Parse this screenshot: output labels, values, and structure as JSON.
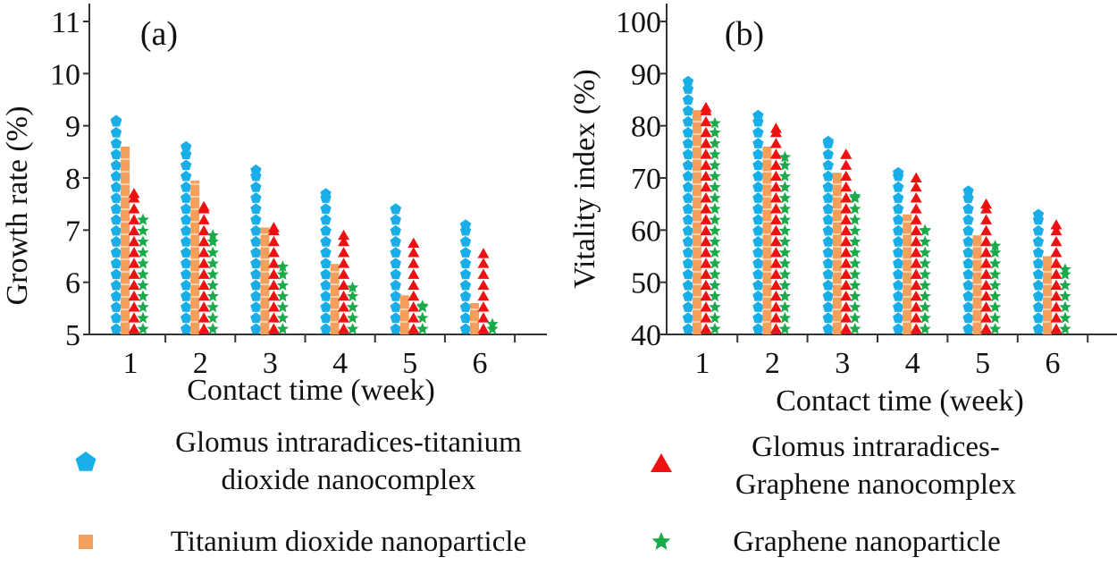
{
  "colors": {
    "gi_tio2": "#1aaee8",
    "tio2": "#f4a05c",
    "gi_graphene": "#ee1111",
    "graphene": "#1aaa4a",
    "axis": "#333333"
  },
  "legend": [
    {
      "key": "gi_tio2",
      "marker": "pentagon",
      "lines": [
        "Glomus intraradices-titanium",
        "dioxide nanocomplex"
      ]
    },
    {
      "key": "tio2",
      "marker": "square",
      "lines": [
        "Titanium dioxide nanoparticle"
      ]
    },
    {
      "key": "gi_graphene",
      "marker": "triangle",
      "lines": [
        "Glomus intraradices-",
        "Graphene nanocomplex"
      ]
    },
    {
      "key": "graphene",
      "marker": "star",
      "lines": [
        "Graphene nanoparticle"
      ]
    }
  ],
  "chart_data": [
    {
      "type": "bar",
      "panel": "(a)",
      "title": "",
      "xlabel": "Contact time (week)",
      "ylabel": "Growth rate (%)",
      "categories": [
        "1",
        "2",
        "3",
        "4",
        "5",
        "6"
      ],
      "ylim": [
        5,
        11
      ],
      "yticks": [
        5,
        6,
        7,
        8,
        9,
        10,
        11
      ],
      "grid": false,
      "series": [
        {
          "name": "Glomus intraradices-titanium dioxide nanocomplex",
          "key": "gi_tio2",
          "values": [
            9.2,
            8.7,
            8.25,
            7.8,
            7.5,
            7.2
          ]
        },
        {
          "name": "Titanium dioxide nanoparticle",
          "key": "tio2",
          "values": [
            8.6,
            7.95,
            7.05,
            6.35,
            5.75,
            5.6
          ]
        },
        {
          "name": "Glomus intraradices-Graphene nanocomplex",
          "key": "gi_graphene",
          "values": [
            7.8,
            7.55,
            7.15,
            7.0,
            6.85,
            6.65
          ]
        },
        {
          "name": "Graphene nanoparticle",
          "key": "graphene",
          "values": [
            7.3,
            7.0,
            6.4,
            6.0,
            5.65,
            5.3
          ]
        }
      ]
    },
    {
      "type": "bar",
      "panel": "(b)",
      "title": "",
      "xlabel": "Contact time (week)",
      "ylabel": "Vitality index (%)",
      "categories": [
        "1",
        "2",
        "3",
        "4",
        "5",
        "6"
      ],
      "ylim": [
        40,
        100
      ],
      "yticks": [
        40,
        50,
        60,
        70,
        80,
        90,
        100
      ],
      "grid": false,
      "series": [
        {
          "name": "Glomus intraradices-titanium dioxide nanocomplex",
          "key": "gi_tio2",
          "values": [
            89.5,
            83,
            78,
            72,
            68.5,
            64
          ]
        },
        {
          "name": "Titanium dioxide nanoparticle",
          "key": "tio2",
          "values": [
            83,
            76,
            71,
            63,
            59,
            55
          ]
        },
        {
          "name": "Glomus intraradices-Graphene nanocomplex",
          "key": "gi_graphene",
          "values": [
            84.5,
            80.5,
            75.5,
            71,
            66,
            62
          ]
        },
        {
          "name": "Graphene nanoparticle",
          "key": "graphene",
          "values": [
            81.5,
            75,
            67.5,
            61,
            58,
            53.5
          ]
        }
      ]
    }
  ]
}
